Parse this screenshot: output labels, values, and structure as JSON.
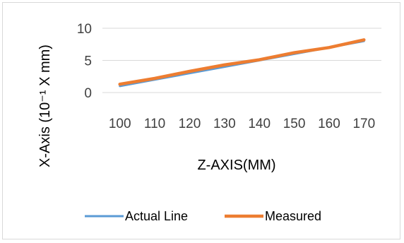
{
  "chart_data": {
    "type": "line",
    "title": "",
    "xlabel": "Z-AXIS(MM)",
    "ylabel": "X-Axis (10⁻¹ X mm)",
    "categories": [
      "100",
      "110",
      "120",
      "130",
      "140",
      "150",
      "160",
      "170"
    ],
    "ylim": [
      0,
      10
    ],
    "yticks": [
      "0",
      "5",
      "10"
    ],
    "grid": true,
    "legend_position": "bottom",
    "series": [
      {
        "name": "Actual Line",
        "color": "#5B9BD5",
        "values": [
          1,
          2,
          3,
          4,
          5,
          6,
          7,
          8
        ]
      },
      {
        "name": "Measured",
        "color": "#ED7D31",
        "values": [
          1.3,
          2.2,
          3.3,
          4.3,
          5.1,
          6.2,
          7.0,
          8.2
        ]
      }
    ]
  }
}
